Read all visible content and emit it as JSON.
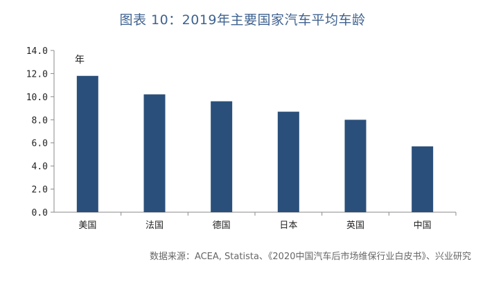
{
  "title": "图表 10：2019年主要国家汽车平均车龄",
  "source": "数据来源：ACEA, Statista、《2020中国汽车后市场维保行业白皮书》、兴业研究",
  "chart_data": {
    "type": "bar",
    "categories": [
      "美国",
      "法国",
      "德国",
      "日本",
      "英国",
      "中国"
    ],
    "values": [
      11.8,
      10.2,
      9.6,
      8.7,
      8.0,
      5.7
    ],
    "unit_label": "年",
    "ylim": [
      0,
      14
    ],
    "yticks": [
      "0.0",
      "2.0",
      "4.0",
      "6.0",
      "8.0",
      "10.0",
      "12.0",
      "14.0"
    ],
    "bar_color": "#2a4f7a",
    "grid": false,
    "legend": "none"
  }
}
